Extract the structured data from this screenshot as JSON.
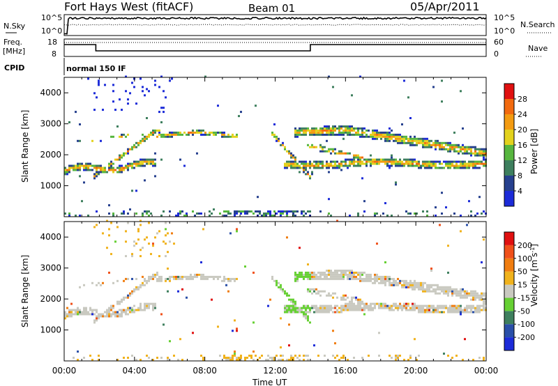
{
  "header": {
    "station": "Fort Hays West (fitACF)",
    "beam": "Beam 01",
    "date": "05/Apr/2011"
  },
  "chart_data": [
    {
      "type": "line",
      "panel": "noise",
      "left_label": "N.Sky",
      "right_label": "N.Search",
      "left_ticks": [
        "10^5",
        "10^0"
      ],
      "right_ticks": [
        "10^5",
        "10^0"
      ]
    },
    {
      "type": "line",
      "panel": "frequency",
      "left_label_1": "Freq.",
      "left_label_2": "[MHz]",
      "right_label": "Nave",
      "left_ticks": [
        18,
        8
      ],
      "right_ticks": [
        60,
        0
      ],
      "freq_steps": [
        [
          0,
          14.8
        ],
        [
          1.8,
          14.8
        ],
        [
          1.8,
          11.2
        ],
        [
          14.0,
          11.2
        ],
        [
          14.0,
          14.8
        ],
        [
          24.0,
          14.8
        ]
      ]
    },
    {
      "type": "table",
      "panel": "cpid",
      "label": "CPID",
      "mode": "normal 150 IF"
    },
    {
      "type": "heatmap",
      "panel": "power",
      "ylabel": "Slant Range [km]",
      "yticks": [
        1000,
        2000,
        3000,
        4000
      ],
      "ylim": [
        0,
        4500
      ],
      "colorbar_title": "Power [dB]",
      "colorbar_ticks": [
        4,
        8,
        12,
        16,
        20,
        24,
        28
      ],
      "colors": [
        "#1c2bd8",
        "#26408e",
        "#3e7f5e",
        "#57b63f",
        "#e3d21d",
        "#f39b11",
        "#f26a0f",
        "#e01010"
      ]
    },
    {
      "type": "heatmap",
      "panel": "velocity",
      "ylabel": "Slant Range [km]",
      "yticks": [
        1000,
        2000,
        3000,
        4000
      ],
      "ylim": [
        0,
        4500
      ],
      "xlabel": "Time UT",
      "xticks": [
        "00:00",
        "04:00",
        "08:00",
        "12:00",
        "16:00",
        "20:00",
        "00:00"
      ],
      "xlim": [
        0,
        24
      ],
      "colorbar_title": "Velocity [m s",
      "colorbar_sup": "-1",
      "colorbar_title_end": "]",
      "colorbar_ticks": [
        200,
        100,
        50,
        15,
        -15,
        -50,
        -100,
        -200
      ],
      "colors": [
        "#1c2bd8",
        "#2a4fa8",
        "#3e7f5e",
        "#66d033",
        "#c9c9c0",
        "#f0b21c",
        "#f07d10",
        "#f0501a",
        "#e01010"
      ]
    }
  ]
}
